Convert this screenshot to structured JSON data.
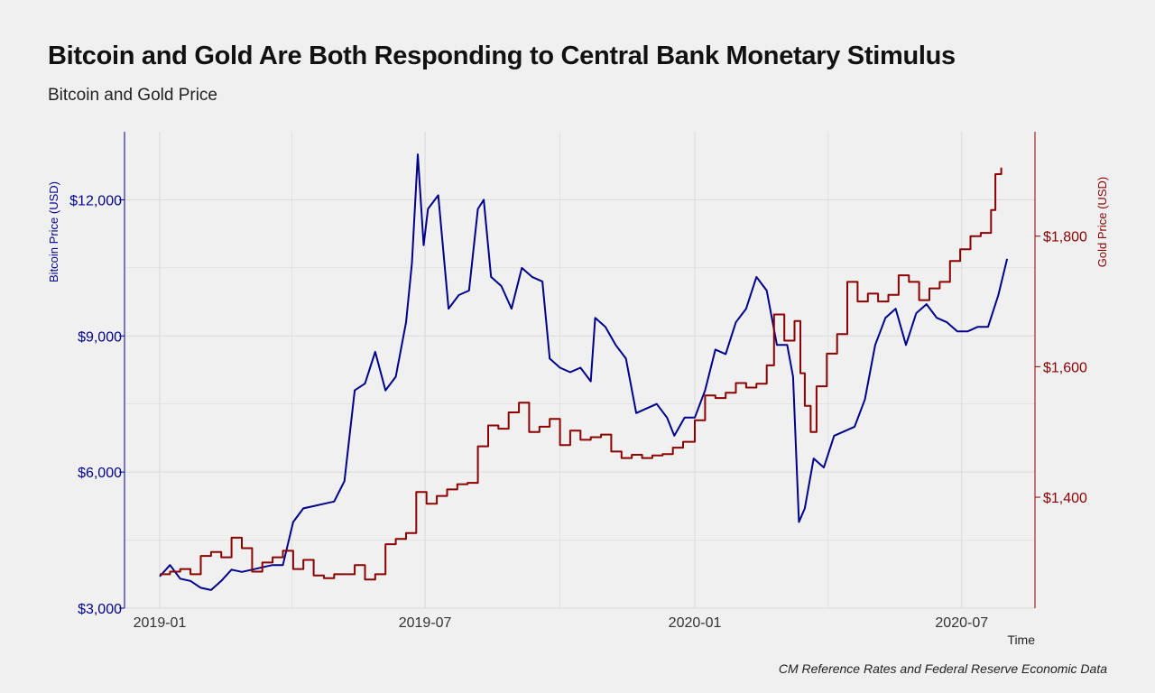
{
  "title": "Bitcoin and Gold Are Both Responding to Central Bank Monetary Stimulus",
  "subtitle": "Bitcoin and Gold Price",
  "caption": "CM Reference Rates and Federal Reserve Economic Data",
  "colors": {
    "bitcoin": "#00008b",
    "gold": "#8b0000",
    "background": "#f0f0f0",
    "grid": "#d9d9d9"
  },
  "chart_data": {
    "type": "line",
    "xlabel": "Time",
    "x_ticks": [
      "2019-01",
      "2019-07",
      "2020-01",
      "2020-07"
    ],
    "x_range": [
      "2018-12-08",
      "2020-08-20"
    ],
    "left_axis": {
      "label": "Bitcoin Price (USD)",
      "ticks": [
        "$3,000",
        "$6,000",
        "$9,000",
        "$12,000"
      ],
      "tick_values": [
        3000,
        6000,
        9000,
        12000
      ],
      "ylim": [
        3000,
        13500
      ]
    },
    "right_axis": {
      "label": "Gold Price (USD)",
      "ticks": [
        "$1,400",
        "$1,600",
        "$1,800"
      ],
      "tick_values": [
        1400,
        1600,
        1800
      ],
      "ylim": [
        1230,
        1960
      ]
    },
    "grid": true,
    "series": [
      {
        "axis": "left",
        "color": "#00008b",
        "points": [
          [
            "2019-01-01",
            3700
          ],
          [
            "2019-01-08",
            3950
          ],
          [
            "2019-01-15",
            3650
          ],
          [
            "2019-01-22",
            3600
          ],
          [
            "2019-01-29",
            3450
          ],
          [
            "2019-02-05",
            3400
          ],
          [
            "2019-02-12",
            3600
          ],
          [
            "2019-02-19",
            3850
          ],
          [
            "2019-02-26",
            3800
          ],
          [
            "2019-03-05",
            3850
          ],
          [
            "2019-03-12",
            3900
          ],
          [
            "2019-03-19",
            3950
          ],
          [
            "2019-03-26",
            3950
          ],
          [
            "2019-04-02",
            4900
          ],
          [
            "2019-04-09",
            5200
          ],
          [
            "2019-04-16",
            5250
          ],
          [
            "2019-04-23",
            5300
          ],
          [
            "2019-04-30",
            5350
          ],
          [
            "2019-05-07",
            5800
          ],
          [
            "2019-05-14",
            7800
          ],
          [
            "2019-05-21",
            7950
          ],
          [
            "2019-05-28",
            8650
          ],
          [
            "2019-06-04",
            7800
          ],
          [
            "2019-06-11",
            8100
          ],
          [
            "2019-06-18",
            9300
          ],
          [
            "2019-06-22",
            10600
          ],
          [
            "2019-06-26",
            13000
          ],
          [
            "2019-06-30",
            11000
          ],
          [
            "2019-07-03",
            11800
          ],
          [
            "2019-07-10",
            12100
          ],
          [
            "2019-07-17",
            9600
          ],
          [
            "2019-07-24",
            9900
          ],
          [
            "2019-07-31",
            10000
          ],
          [
            "2019-08-06",
            11800
          ],
          [
            "2019-08-10",
            12000
          ],
          [
            "2019-08-15",
            10300
          ],
          [
            "2019-08-22",
            10100
          ],
          [
            "2019-08-29",
            9600
          ],
          [
            "2019-09-05",
            10500
          ],
          [
            "2019-09-12",
            10300
          ],
          [
            "2019-09-19",
            10200
          ],
          [
            "2019-09-24",
            8500
          ],
          [
            "2019-10-01",
            8300
          ],
          [
            "2019-10-08",
            8200
          ],
          [
            "2019-10-15",
            8300
          ],
          [
            "2019-10-22",
            8000
          ],
          [
            "2019-10-25",
            9400
          ],
          [
            "2019-11-01",
            9200
          ],
          [
            "2019-11-08",
            8800
          ],
          [
            "2019-11-15",
            8500
          ],
          [
            "2019-11-22",
            7300
          ],
          [
            "2019-11-29",
            7400
          ],
          [
            "2019-12-06",
            7500
          ],
          [
            "2019-12-13",
            7200
          ],
          [
            "2019-12-18",
            6800
          ],
          [
            "2019-12-25",
            7200
          ],
          [
            "2020-01-01",
            7200
          ],
          [
            "2020-01-08",
            7800
          ],
          [
            "2020-01-15",
            8700
          ],
          [
            "2020-01-22",
            8600
          ],
          [
            "2020-01-29",
            9300
          ],
          [
            "2020-02-05",
            9600
          ],
          [
            "2020-02-12",
            10300
          ],
          [
            "2020-02-19",
            10000
          ],
          [
            "2020-02-26",
            8800
          ],
          [
            "2020-03-04",
            8800
          ],
          [
            "2020-03-08",
            8100
          ],
          [
            "2020-03-12",
            4900
          ],
          [
            "2020-03-16",
            5200
          ],
          [
            "2020-03-22",
            6300
          ],
          [
            "2020-03-29",
            6100
          ],
          [
            "2020-04-05",
            6800
          ],
          [
            "2020-04-12",
            6900
          ],
          [
            "2020-04-19",
            7000
          ],
          [
            "2020-04-26",
            7600
          ],
          [
            "2020-05-03",
            8800
          ],
          [
            "2020-05-10",
            9400
          ],
          [
            "2020-05-17",
            9600
          ],
          [
            "2020-05-24",
            8800
          ],
          [
            "2020-05-31",
            9500
          ],
          [
            "2020-06-07",
            9700
          ],
          [
            "2020-06-14",
            9400
          ],
          [
            "2020-06-21",
            9300
          ],
          [
            "2020-06-28",
            9100
          ],
          [
            "2020-07-05",
            9100
          ],
          [
            "2020-07-12",
            9200
          ],
          [
            "2020-07-19",
            9200
          ],
          [
            "2020-07-26",
            9900
          ],
          [
            "2020-08-01",
            10700
          ]
        ]
      },
      {
        "axis": "right",
        "color": "#8b0000",
        "points": [
          [
            "2019-01-01",
            1282
          ],
          [
            "2019-01-08",
            1286
          ],
          [
            "2019-01-15",
            1290
          ],
          [
            "2019-01-22",
            1282
          ],
          [
            "2019-01-29",
            1310
          ],
          [
            "2019-02-05",
            1316
          ],
          [
            "2019-02-12",
            1308
          ],
          [
            "2019-02-19",
            1338
          ],
          [
            "2019-02-26",
            1322
          ],
          [
            "2019-03-05",
            1286
          ],
          [
            "2019-03-12",
            1300
          ],
          [
            "2019-03-19",
            1308
          ],
          [
            "2019-03-26",
            1318
          ],
          [
            "2019-04-02",
            1290
          ],
          [
            "2019-04-09",
            1304
          ],
          [
            "2019-04-16",
            1280
          ],
          [
            "2019-04-23",
            1276
          ],
          [
            "2019-04-30",
            1282
          ],
          [
            "2019-05-07",
            1282
          ],
          [
            "2019-05-14",
            1296
          ],
          [
            "2019-05-21",
            1274
          ],
          [
            "2019-05-28",
            1282
          ],
          [
            "2019-06-04",
            1328
          ],
          [
            "2019-06-11",
            1336
          ],
          [
            "2019-06-18",
            1345
          ],
          [
            "2019-06-25",
            1408
          ],
          [
            "2019-07-02",
            1390
          ],
          [
            "2019-07-09",
            1402
          ],
          [
            "2019-07-16",
            1412
          ],
          [
            "2019-07-23",
            1420
          ],
          [
            "2019-07-30",
            1422
          ],
          [
            "2019-08-06",
            1478
          ],
          [
            "2019-08-13",
            1510
          ],
          [
            "2019-08-20",
            1505
          ],
          [
            "2019-08-27",
            1530
          ],
          [
            "2019-09-03",
            1545
          ],
          [
            "2019-09-10",
            1500
          ],
          [
            "2019-09-17",
            1508
          ],
          [
            "2019-09-24",
            1520
          ],
          [
            "2019-10-01",
            1480
          ],
          [
            "2019-10-08",
            1502
          ],
          [
            "2019-10-15",
            1488
          ],
          [
            "2019-10-22",
            1492
          ],
          [
            "2019-10-29",
            1496
          ],
          [
            "2019-11-05",
            1470
          ],
          [
            "2019-11-12",
            1460
          ],
          [
            "2019-11-19",
            1465
          ],
          [
            "2019-11-26",
            1460
          ],
          [
            "2019-12-03",
            1464
          ],
          [
            "2019-12-10",
            1466
          ],
          [
            "2019-12-17",
            1476
          ],
          [
            "2019-12-24",
            1485
          ],
          [
            "2020-01-01",
            1518
          ],
          [
            "2020-01-08",
            1556
          ],
          [
            "2020-01-15",
            1552
          ],
          [
            "2020-01-22",
            1560
          ],
          [
            "2020-01-29",
            1575
          ],
          [
            "2020-02-05",
            1568
          ],
          [
            "2020-02-12",
            1574
          ],
          [
            "2020-02-19",
            1602
          ],
          [
            "2020-02-24",
            1680
          ],
          [
            "2020-03-02",
            1640
          ],
          [
            "2020-03-09",
            1670
          ],
          [
            "2020-03-13",
            1590
          ],
          [
            "2020-03-16",
            1540
          ],
          [
            "2020-03-20",
            1500
          ],
          [
            "2020-03-24",
            1570
          ],
          [
            "2020-03-31",
            1620
          ],
          [
            "2020-04-07",
            1650
          ],
          [
            "2020-04-14",
            1730
          ],
          [
            "2020-04-21",
            1700
          ],
          [
            "2020-04-28",
            1712
          ],
          [
            "2020-05-05",
            1700
          ],
          [
            "2020-05-12",
            1710
          ],
          [
            "2020-05-19",
            1740
          ],
          [
            "2020-05-26",
            1730
          ],
          [
            "2020-06-02",
            1702
          ],
          [
            "2020-06-09",
            1720
          ],
          [
            "2020-06-16",
            1730
          ],
          [
            "2020-06-23",
            1762
          ],
          [
            "2020-06-30",
            1780
          ],
          [
            "2020-07-07",
            1800
          ],
          [
            "2020-07-14",
            1805
          ],
          [
            "2020-07-21",
            1840
          ],
          [
            "2020-07-24",
            1895
          ],
          [
            "2020-07-28",
            1905
          ]
        ]
      }
    ]
  }
}
